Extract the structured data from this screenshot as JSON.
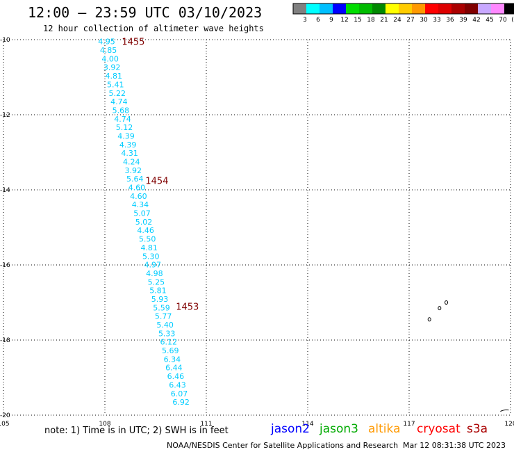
{
  "header": {
    "title": "12:00 — 23:59 UTC 03/10/2023",
    "subtitle": "12 hour collection of altimeter wave heights"
  },
  "legend": {
    "colors": [
      "#808080",
      "#00ffff",
      "#00bfff",
      "#0000ff",
      "#00dd00",
      "#00bb00",
      "#008800",
      "#ffff00",
      "#ffcc00",
      "#ff9900",
      "#ff0000",
      "#dd0000",
      "#aa0000",
      "#800000",
      "#c8a8ff",
      "#ff88ff",
      "#000000"
    ],
    "labels": [
      "3",
      "6",
      "9",
      "12",
      "15",
      "18",
      "21",
      "24",
      "27",
      "30",
      "33",
      "36",
      "39",
      "42",
      "45",
      "70",
      "(ft)"
    ]
  },
  "chart_data": {
    "type": "scatter",
    "xlim": [
      105,
      120
    ],
    "ylim": [
      -20,
      -10
    ],
    "x_ticks": [
      "105",
      "108",
      "111",
      "114",
      "117",
      "120"
    ],
    "y_ticks": [
      "-10",
      "-12",
      "-14",
      "-16",
      "-18",
      "-20"
    ],
    "track": {
      "color": "#00ccff",
      "x_start": 107.8,
      "y_start": -10.05,
      "x_end": 110.0,
      "y_end": -19.65,
      "values": [
        "4.95",
        "4.85",
        "4.00",
        "3.92",
        "4.81",
        "5.41",
        "5.22",
        "4.74",
        "5.68",
        "4.74",
        "5.12",
        "4.39",
        "4.39",
        "4.31",
        "4.24",
        "3.92",
        "5.64",
        "4.60",
        "4.60",
        "4.34",
        "5.07",
        "5.02",
        "4.46",
        "5.50",
        "4.81",
        "5.30",
        "4.97",
        "4.98",
        "5.25",
        "5.81",
        "5.93",
        "5.59",
        "5.77",
        "5.40",
        "5.33",
        "6.12",
        "5.69",
        "6.34",
        "6.44",
        "6.46",
        "6.43",
        "6.07",
        "6.92"
      ]
    },
    "time_labels": [
      {
        "text": "1455",
        "x": 108.5,
        "y": -10.05
      },
      {
        "text": "1454",
        "x": 109.2,
        "y": -13.75
      },
      {
        "text": "1453",
        "x": 110.1,
        "y": -17.1
      }
    ],
    "time_label_color": "#800000"
  },
  "footer": {
    "note": "note: 1) Time is in UTC; 2) SWH is in feet",
    "satellites": [
      {
        "name": "jason2",
        "color": "#0000ff"
      },
      {
        "name": "jason3",
        "color": "#00aa00"
      },
      {
        "name": "altika",
        "color": "#ff9900"
      },
      {
        "name": "cryosat",
        "color": "#ff0000"
      },
      {
        "name": "s3a",
        "color": "#aa0000"
      }
    ],
    "credit": "NOAA/NESDIS Center for Satellite Applications and Research",
    "timestamp": "Mar 12 08:31:38 UTC 2023"
  }
}
